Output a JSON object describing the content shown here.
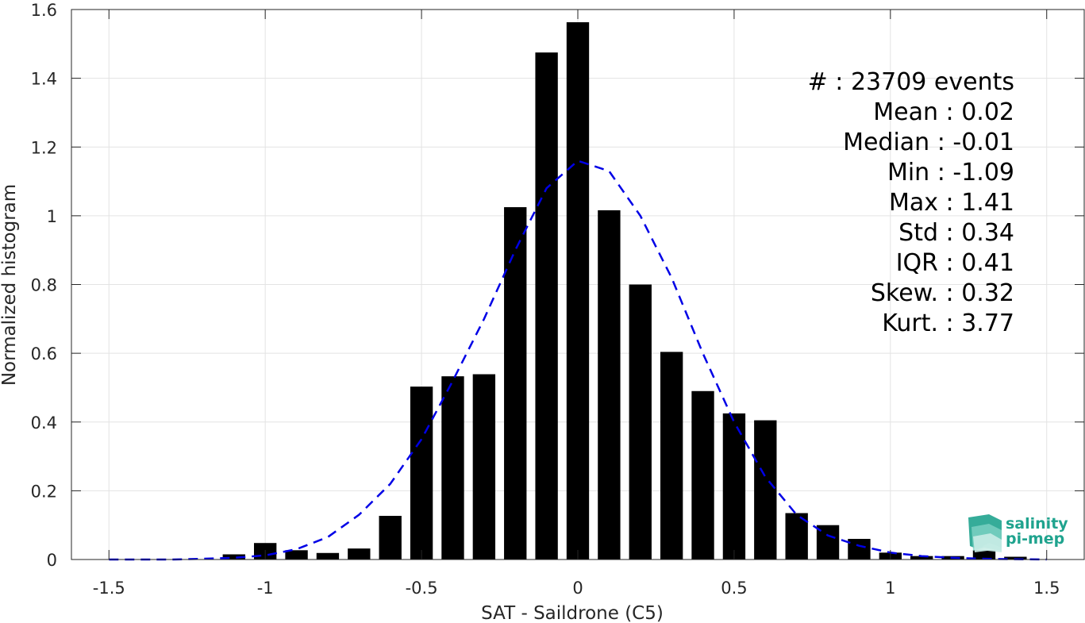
{
  "chart_data": {
    "type": "bar",
    "xlabel": "SAT - Saildrone (C5)",
    "ylabel": "Normalized histogram",
    "xlim": [
      -1.62,
      1.62
    ],
    "ylim": [
      0,
      1.6
    ],
    "grid": true,
    "x": [
      -1.1,
      -1.0,
      -0.9,
      -0.8,
      -0.7,
      -0.6,
      -0.5,
      -0.4,
      -0.3,
      -0.2,
      -0.1,
      0.0,
      0.1,
      0.2,
      0.3,
      0.4,
      0.5,
      0.6,
      0.7,
      0.8,
      0.9,
      1.0,
      1.1,
      1.2,
      1.3,
      1.4
    ],
    "values": [
      0.015,
      0.048,
      0.027,
      0.019,
      0.032,
      0.127,
      0.503,
      0.533,
      0.539,
      1.025,
      1.475,
      1.563,
      1.016,
      0.8,
      0.604,
      0.49,
      0.425,
      0.405,
      0.135,
      0.1,
      0.06,
      0.02,
      0.01,
      0.01,
      0.027,
      0.008
    ],
    "bar_color": "#000000",
    "fit_curve": {
      "style": "dashed",
      "color": "#0000e6",
      "x": [
        -1.5,
        -1.4,
        -1.3,
        -1.2,
        -1.1,
        -1.0,
        -0.9,
        -0.8,
        -0.7,
        -0.6,
        -0.5,
        -0.4,
        -0.3,
        -0.2,
        -0.1,
        0.0,
        0.1,
        0.2,
        0.3,
        0.4,
        0.5,
        0.6,
        0.7,
        0.8,
        0.9,
        1.0,
        1.1,
        1.2,
        1.3,
        1.4,
        1.5
      ],
      "y": [
        0.0,
        0.0,
        0.0,
        0.002,
        0.005,
        0.012,
        0.03,
        0.065,
        0.13,
        0.22,
        0.35,
        0.52,
        0.7,
        0.9,
        1.08,
        1.16,
        1.13,
        1.0,
        0.82,
        0.6,
        0.4,
        0.24,
        0.13,
        0.07,
        0.04,
        0.02,
        0.01,
        0.005,
        0.002,
        0.001,
        0.0
      ]
    },
    "xticks": [
      -1.5,
      -1,
      -0.5,
      0,
      0.5,
      1,
      1.5
    ],
    "xtick_labels": [
      "-1.5",
      "-1",
      "-0.5",
      "0",
      "0.5",
      "1",
      "1.5"
    ],
    "yticks": [
      0,
      0.2,
      0.4,
      0.6,
      0.8,
      1,
      1.2,
      1.4,
      1.6
    ],
    "ytick_labels": [
      "0",
      "0.2",
      "0.4",
      "0.6",
      "0.8",
      "1",
      "1.2",
      "1.4",
      "1.6"
    ],
    "annotations": [
      "#  : 23709 events",
      "Mean : 0.02",
      "Median : -0.01",
      "Min : -1.09",
      "Max : 1.41",
      "Std : 0.34",
      "IQR : 0.41",
      "Skew. : 0.32",
      "Kurt. : 3.77"
    ]
  },
  "logo": {
    "line1": "salinity",
    "line2": "pi-mep",
    "color": "#1fa38e"
  }
}
